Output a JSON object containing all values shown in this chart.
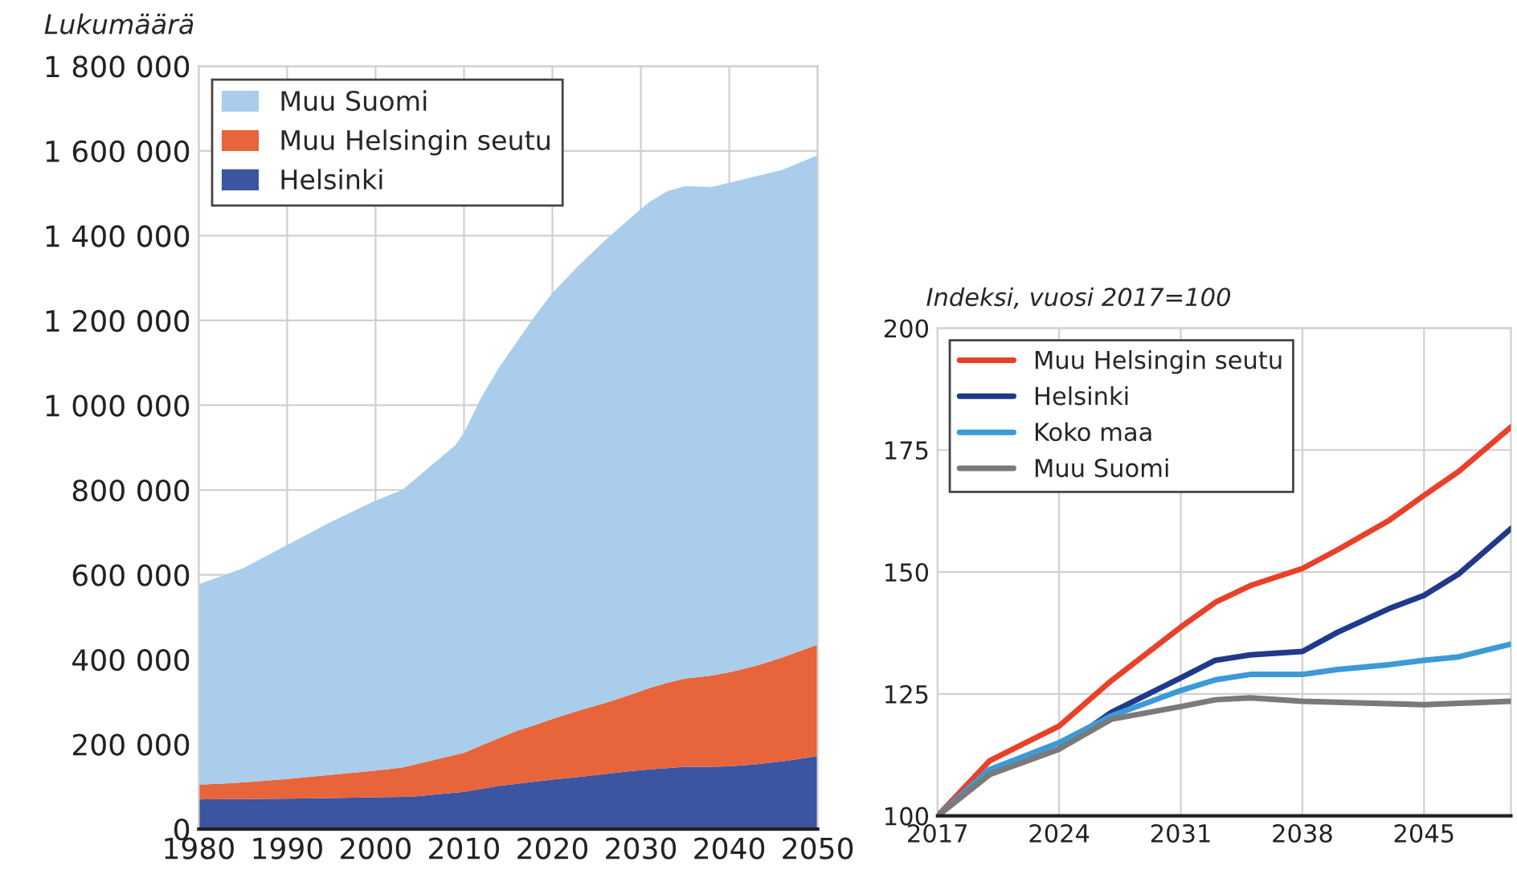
{
  "chart_data": [
    {
      "type": "area",
      "stacked": true,
      "ylabel": "Lukumäärä",
      "x": [
        1980,
        1983,
        1985,
        1990,
        1995,
        2000,
        2003,
        2005,
        2007,
        2009,
        2010,
        2012,
        2014,
        2016,
        2018,
        2020,
        2023,
        2026,
        2029,
        2031,
        2033,
        2035,
        2038,
        2040,
        2043,
        2046,
        2050
      ],
      "series": [
        {
          "name": "Helsinki",
          "color": "#3b55a0",
          "values": [
            70000,
            71000,
            71000,
            72000,
            73000,
            75000,
            76000,
            78000,
            82000,
            86000,
            88000,
            95000,
            102000,
            107000,
            112000,
            117000,
            123000,
            130000,
            137000,
            141000,
            144000,
            147000,
            147000,
            148000,
            153000,
            160000,
            172000
          ]
        },
        {
          "name": "Muu Helsingin seutu",
          "color": "#e8643a",
          "values": [
            35000,
            37000,
            39000,
            46000,
            55000,
            63000,
            69000,
            77000,
            83000,
            89000,
            92000,
            103000,
            113000,
            125000,
            133000,
            143000,
            157000,
            168000,
            181000,
            192000,
            201000,
            208000,
            215000,
            222000,
            232000,
            245000,
            263000
          ]
        },
        {
          "name": "Muu Suomi",
          "color": "#a9cdeb",
          "values": [
            473000,
            492000,
            505000,
            552000,
            597000,
            637000,
            655000,
            680000,
            705000,
            730000,
            755000,
            822000,
            875000,
            918000,
            965000,
            1005000,
            1050000,
            1092000,
            1127000,
            1147000,
            1160000,
            1162000,
            1153000,
            1155000,
            1155000,
            1150000,
            1155000
          ]
        }
      ],
      "xlim": [
        1980,
        2050
      ],
      "xticks": [
        1980,
        1990,
        2000,
        2010,
        2020,
        2030,
        2040,
        2050
      ],
      "ylim": [
        0,
        1800000
      ],
      "yticks": [
        0,
        {
          "value": 200000,
          "label": "200 000"
        },
        {
          "value": 400000,
          "label": "400 000"
        },
        {
          "value": 600000,
          "label": "600 000"
        },
        {
          "value": 800000,
          "label": "800 000"
        },
        {
          "value": 1000000,
          "label": "1 000 000"
        },
        {
          "value": 1200000,
          "label": "1 200 000"
        },
        {
          "value": 1400000,
          "label": "1 400 000"
        },
        {
          "value": 1600000,
          "label": "1 600 000"
        },
        {
          "value": 1800000,
          "label": "1 800 000"
        }
      ],
      "grid": true,
      "legend": "top left"
    },
    {
      "type": "line",
      "ylabel": "Indeksi, vuosi 2017=100",
      "series": [
        {
          "name": "Muu Helsingin seutu",
          "color": "#e8412a",
          "x": [
            2017,
            2020,
            2024,
            2027,
            2031,
            2033,
            2035,
            2038,
            2040,
            2043,
            2045,
            2047,
            2050
          ],
          "values": [
            100,
            111.3,
            118.4,
            127.7,
            138.7,
            143.8,
            147.2,
            150.7,
            154.5,
            160.6,
            165.7,
            170.6,
            179.7
          ]
        },
        {
          "name": "Helsinki",
          "color": "#1f3a8a",
          "x": [
            2017,
            2020,
            2024,
            2027,
            2031,
            2033,
            2035,
            2038,
            2040,
            2043,
            2045,
            2047,
            2050
          ],
          "values": [
            100,
            108.5,
            113.7,
            121.2,
            128.3,
            131.9,
            133,
            133.7,
            137.6,
            142.5,
            145.2,
            149.6,
            158.9
          ]
        },
        {
          "name": "Koko maa",
          "color": "#3d9ad6",
          "x": [
            2017,
            2020,
            2024,
            2027,
            2031,
            2033,
            2035,
            2038,
            2040,
            2043,
            2045,
            2047,
            2050
          ],
          "values": [
            100,
            109.5,
            115,
            120.5,
            125.7,
            127.9,
            129,
            129,
            130,
            131,
            131.9,
            132.6,
            135.2
          ]
        },
        {
          "name": "Muu Suomi",
          "color": "#7a7a7a",
          "x": [
            2017,
            2020,
            2024,
            2027,
            2031,
            2033,
            2035,
            2038,
            2040,
            2045,
            2050
          ],
          "values": [
            100,
            108.5,
            113.7,
            119.8,
            122.4,
            123.8,
            124.2,
            123.5,
            123.3,
            122.8,
            123.5
          ]
        }
      ],
      "xlim": [
        2017,
        2050
      ],
      "xticks": [
        2017,
        2024,
        2031,
        2038,
        2045
      ],
      "ylim": [
        100,
        200
      ],
      "yticks": [
        100,
        125,
        150,
        175,
        200
      ],
      "grid": true,
      "legend": "top left",
      "line_style": "solid"
    }
  ]
}
